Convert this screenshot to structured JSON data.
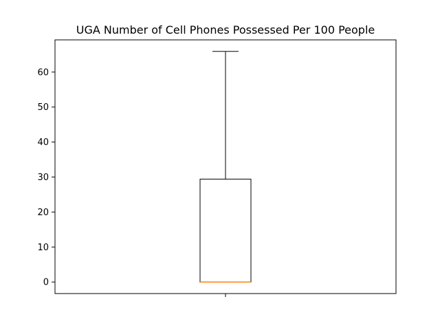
{
  "chart_data": {
    "type": "box",
    "title": "UGA Number of Cell Phones Possessed Per 100 People",
    "xlabel": "",
    "ylabel": "",
    "ylim": [
      -3.3,
      69.2
    ],
    "yticks": [
      0,
      10,
      20,
      30,
      40,
      50,
      60
    ],
    "grid": false,
    "legend": "none",
    "box": {
      "whisker_low": 0,
      "q1": 0,
      "median": 0,
      "q3": 29.4,
      "whisker_high": 65.9
    },
    "colors": {
      "box": "#000000",
      "median": "#ff7f0e"
    }
  }
}
